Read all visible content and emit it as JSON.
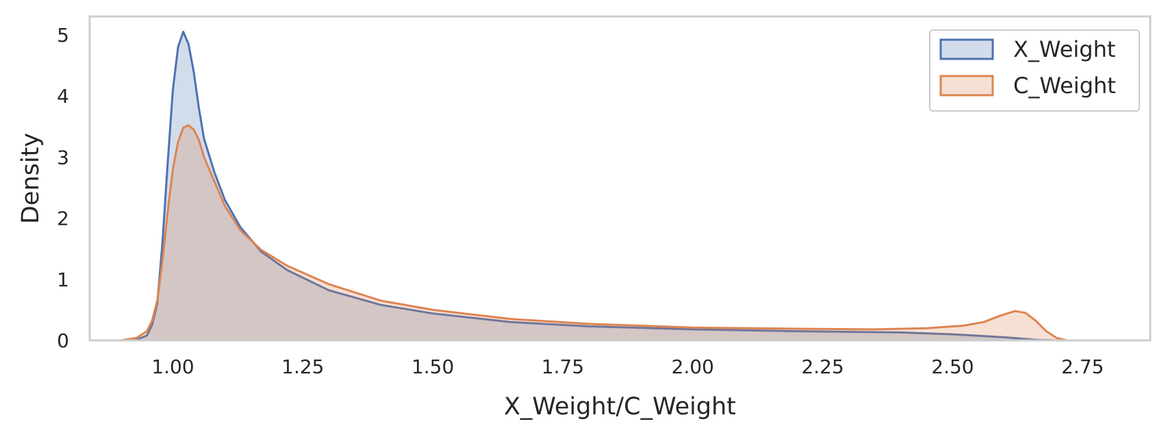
{
  "chart_data": {
    "type": "area",
    "xlabel": "X_Weight/C_Weight",
    "ylabel": "Density",
    "xlim": [
      0.84,
      2.88
    ],
    "ylim": [
      0,
      5.3
    ],
    "x_ticks": [
      "1.00",
      "1.25",
      "1.50",
      "1.75",
      "2.00",
      "2.25",
      "2.50",
      "2.75"
    ],
    "y_ticks": [
      "0",
      "1",
      "2",
      "3",
      "4",
      "5"
    ],
    "grid": false,
    "legend_position": "top-right",
    "series": [
      {
        "name": "X_Weight",
        "color": "#4C72B0",
        "points": [
          [
            0.91,
            0.0
          ],
          [
            0.93,
            0.01
          ],
          [
            0.95,
            0.08
          ],
          [
            0.96,
            0.25
          ],
          [
            0.97,
            0.6
          ],
          [
            0.98,
            1.6
          ],
          [
            0.99,
            2.9
          ],
          [
            1.0,
            4.1
          ],
          [
            1.01,
            4.8
          ],
          [
            1.02,
            5.05
          ],
          [
            1.03,
            4.85
          ],
          [
            1.04,
            4.4
          ],
          [
            1.05,
            3.8
          ],
          [
            1.06,
            3.3
          ],
          [
            1.08,
            2.75
          ],
          [
            1.1,
            2.3
          ],
          [
            1.13,
            1.85
          ],
          [
            1.17,
            1.45
          ],
          [
            1.22,
            1.15
          ],
          [
            1.3,
            0.82
          ],
          [
            1.4,
            0.58
          ],
          [
            1.5,
            0.44
          ],
          [
            1.65,
            0.3
          ],
          [
            1.8,
            0.23
          ],
          [
            2.0,
            0.18
          ],
          [
            2.2,
            0.15
          ],
          [
            2.4,
            0.13
          ],
          [
            2.5,
            0.1
          ],
          [
            2.6,
            0.05
          ],
          [
            2.66,
            0.01
          ],
          [
            2.7,
            0.0
          ]
        ]
      },
      {
        "name": "C_Weight",
        "color": "#DD8452",
        "points": [
          [
            0.9,
            0.0
          ],
          [
            0.93,
            0.04
          ],
          [
            0.95,
            0.15
          ],
          [
            0.96,
            0.32
          ],
          [
            0.97,
            0.65
          ],
          [
            0.98,
            1.3
          ],
          [
            0.99,
            2.1
          ],
          [
            1.0,
            2.8
          ],
          [
            1.01,
            3.25
          ],
          [
            1.02,
            3.48
          ],
          [
            1.03,
            3.52
          ],
          [
            1.04,
            3.45
          ],
          [
            1.05,
            3.28
          ],
          [
            1.06,
            3.0
          ],
          [
            1.08,
            2.6
          ],
          [
            1.1,
            2.2
          ],
          [
            1.13,
            1.8
          ],
          [
            1.17,
            1.48
          ],
          [
            1.22,
            1.22
          ],
          [
            1.3,
            0.92
          ],
          [
            1.4,
            0.65
          ],
          [
            1.5,
            0.5
          ],
          [
            1.65,
            0.35
          ],
          [
            1.8,
            0.27
          ],
          [
            2.0,
            0.21
          ],
          [
            2.2,
            0.19
          ],
          [
            2.35,
            0.18
          ],
          [
            2.45,
            0.2
          ],
          [
            2.52,
            0.24
          ],
          [
            2.56,
            0.3
          ],
          [
            2.59,
            0.4
          ],
          [
            2.62,
            0.48
          ],
          [
            2.64,
            0.45
          ],
          [
            2.66,
            0.32
          ],
          [
            2.68,
            0.15
          ],
          [
            2.7,
            0.04
          ],
          [
            2.72,
            0.0
          ]
        ]
      }
    ]
  }
}
